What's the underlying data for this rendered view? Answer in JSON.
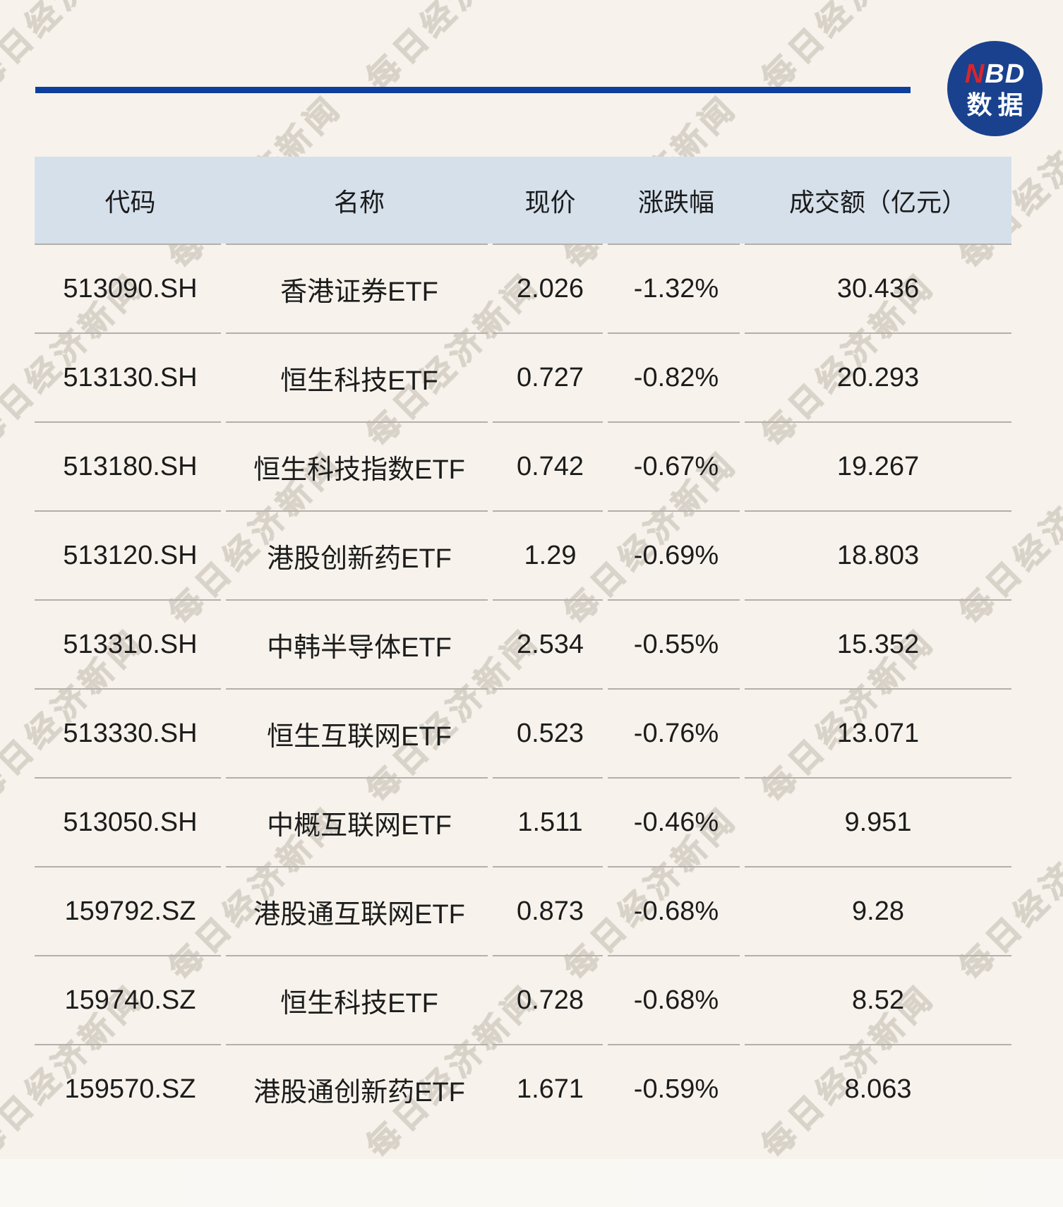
{
  "watermark": {
    "text": "每日经济新闻"
  },
  "logo": {
    "nbd_red": "N",
    "nbd_white": "BD",
    "caption": "数据"
  },
  "colors": {
    "background": "#f7f3ec",
    "top_rule": "#0e3f9e",
    "logo_circle": "#1a418e",
    "logo_red": "#d8262c",
    "table_header_bg": "#d5e0eb",
    "divider": "#b4b0a9",
    "text": "#1c1c1c"
  },
  "chart_data": {
    "type": "table",
    "columns": [
      "代码",
      "名称",
      "现价",
      "涨跌幅",
      "成交额（亿元）"
    ],
    "rows": [
      {
        "code": "513090.SH",
        "name": "香港证券ETF",
        "price": "2.026",
        "change": "-1.32%",
        "turnover": "30.436"
      },
      {
        "code": "513130.SH",
        "name": "恒生科技ETF",
        "price": "0.727",
        "change": "-0.82%",
        "turnover": "20.293"
      },
      {
        "code": "513180.SH",
        "name": "恒生科技指数ETF",
        "price": "0.742",
        "change": "-0.67%",
        "turnover": "19.267"
      },
      {
        "code": "513120.SH",
        "name": "港股创新药ETF",
        "price": "1.29",
        "change": "-0.69%",
        "turnover": "18.803"
      },
      {
        "code": "513310.SH",
        "name": "中韩半导体ETF",
        "price": "2.534",
        "change": "-0.55%",
        "turnover": "15.352"
      },
      {
        "code": "513330.SH",
        "name": "恒生互联网ETF",
        "price": "0.523",
        "change": "-0.76%",
        "turnover": "13.071"
      },
      {
        "code": "513050.SH",
        "name": "中概互联网ETF",
        "price": "1.511",
        "change": "-0.46%",
        "turnover": "9.951"
      },
      {
        "code": "159792.SZ",
        "name": "港股通互联网ETF",
        "price": "0.873",
        "change": "-0.68%",
        "turnover": "9.28"
      },
      {
        "code": "159740.SZ",
        "name": "恒生科技ETF",
        "price": "0.728",
        "change": "-0.68%",
        "turnover": "8.52"
      },
      {
        "code": "159570.SZ",
        "name": "港股通创新药ETF",
        "price": "1.671",
        "change": "-0.59%",
        "turnover": "8.063"
      }
    ]
  }
}
